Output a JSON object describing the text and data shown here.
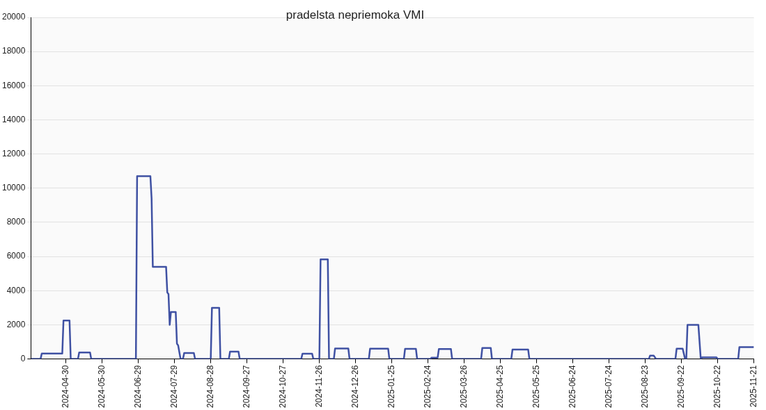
{
  "chart_data": {
    "type": "line",
    "title": "pradelsta nepriemoka VMI",
    "x": [
      "2024-04-01",
      "2024-04-09",
      "2024-04-10",
      "2024-04-27",
      "2024-04-28",
      "2024-05-03",
      "2024-05-04",
      "2024-05-10",
      "2024-05-11",
      "2024-05-20",
      "2024-05-21",
      "2024-06-27",
      "2024-06-28",
      "2024-07-09",
      "2024-07-10",
      "2024-07-11",
      "2024-07-22",
      "2024-07-23",
      "2024-07-24",
      "2024-07-25",
      "2024-07-26",
      "2024-07-30",
      "2024-07-31",
      "2024-08-01",
      "2024-08-03",
      "2024-08-05",
      "2024-08-06",
      "2024-08-14",
      "2024-08-15",
      "2024-08-28",
      "2024-08-29",
      "2024-09-04",
      "2024-09-05",
      "2024-09-12",
      "2024-09-13",
      "2024-09-20",
      "2024-09-21",
      "2024-11-11",
      "2024-11-12",
      "2024-11-20",
      "2024-11-21",
      "2024-11-26",
      "2024-11-27",
      "2024-12-03",
      "2024-12-04",
      "2024-12-08",
      "2024-12-09",
      "2024-12-20",
      "2024-12-21",
      "2025-01-06",
      "2025-01-07",
      "2025-01-22",
      "2025-01-23",
      "2025-02-04",
      "2025-02-05",
      "2025-02-14",
      "2025-02-15",
      "2025-02-26",
      "2025-02-27",
      "2025-03-04",
      "2025-03-05",
      "2025-03-15",
      "2025-03-16",
      "2025-04-09",
      "2025-04-10",
      "2025-04-17",
      "2025-04-18",
      "2025-05-04",
      "2025-05-05",
      "2025-05-18",
      "2025-05-19",
      "2025-08-26",
      "2025-08-27",
      "2025-08-30",
      "2025-09-01",
      "2025-09-17",
      "2025-09-18",
      "2025-09-23",
      "2025-09-25",
      "2025-09-26",
      "2025-09-27",
      "2025-10-06",
      "2025-10-08",
      "2025-10-09",
      "2025-10-21",
      "2025-10-22",
      "2025-11-08",
      "2025-11-09",
      "2025-11-21"
    ],
    "series": [
      {
        "color": "#3f51a3",
        "values": [
          0,
          0,
          320,
          320,
          2250,
          2250,
          0,
          0,
          380,
          380,
          0,
          0,
          10700,
          10700,
          9400,
          5400,
          5400,
          3900,
          3800,
          2000,
          2750,
          2750,
          900,
          800,
          0,
          0,
          350,
          350,
          0,
          0,
          3000,
          3000,
          0,
          0,
          430,
          430,
          0,
          0,
          310,
          310,
          0,
          0,
          5830,
          5830,
          0,
          0,
          610,
          610,
          0,
          0,
          600,
          600,
          0,
          0,
          590,
          590,
          0,
          0,
          80,
          80,
          580,
          580,
          0,
          0,
          650,
          650,
          0,
          0,
          550,
          550,
          0,
          0,
          200,
          200,
          0,
          0,
          600,
          600,
          0,
          0,
          2000,
          2000,
          0,
          100,
          100,
          0,
          0,
          700,
          700
        ]
      }
    ],
    "xlim": [
      "2024-04-01",
      "2025-11-21"
    ],
    "xticks": [
      "2024-04-30",
      "2024-05-30",
      "2024-06-29",
      "2024-07-29",
      "2024-08-28",
      "2024-09-27",
      "2024-10-27",
      "2024-11-26",
      "2024-12-26",
      "2025-01-25",
      "2025-02-24",
      "2025-03-26",
      "2025-04-25",
      "2025-05-25",
      "2025-06-24",
      "2025-07-24",
      "2025-08-23",
      "2025-09-22",
      "2025-10-22",
      "2025-11-21"
    ],
    "ylim": [
      0,
      20000
    ],
    "yticks": [
      0,
      2000,
      4000,
      6000,
      8000,
      10000,
      12000,
      14000,
      16000,
      18000,
      20000
    ],
    "grid": "y",
    "legend": false,
    "marker": "none",
    "line_style": "solid"
  }
}
